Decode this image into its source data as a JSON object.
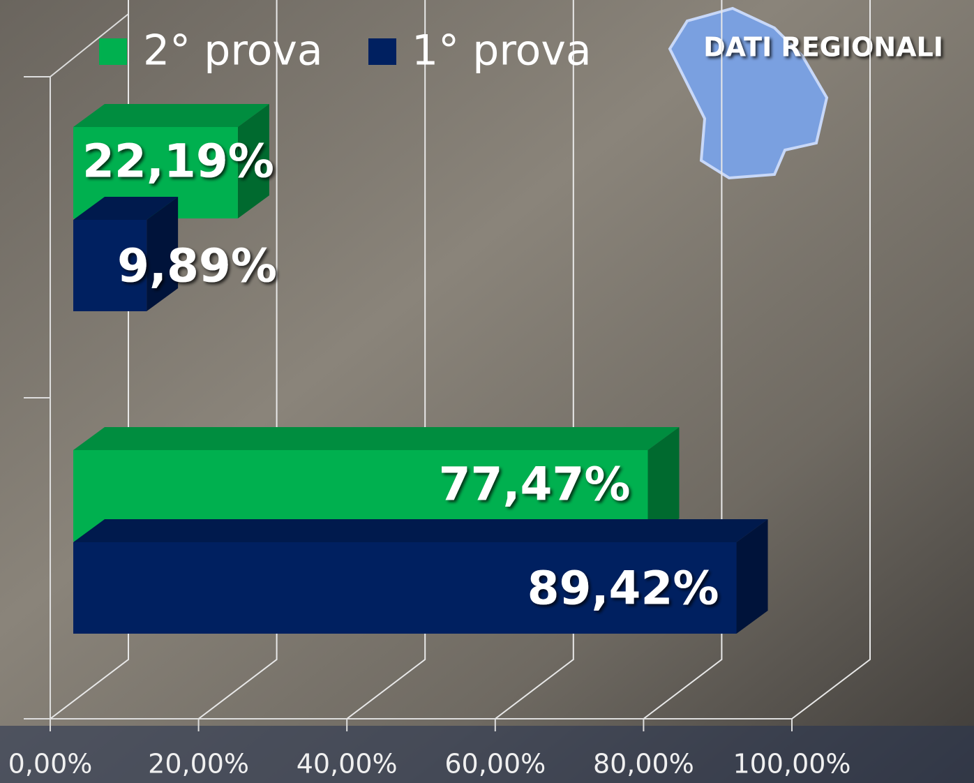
{
  "chart_data": {
    "type": "bar3d",
    "orientation": "horizontal",
    "title": "DATI REGIONALI",
    "categories": [
      null,
      null
    ],
    "series": [
      {
        "name": "2° prova",
        "color": "#00b04f",
        "values": [
          22.19,
          77.47
        ],
        "value_labels": [
          "22,19%",
          "77,47%"
        ]
      },
      {
        "name": "1° prova",
        "color": "#002060",
        "values": [
          9.89,
          89.42
        ],
        "value_labels": [
          "9,89%",
          "89,42%"
        ]
      }
    ],
    "xlim": [
      0,
      100
    ],
    "xticks": [
      {
        "value": 0,
        "label": "0,00%"
      },
      {
        "value": 20,
        "label": "20,00%"
      },
      {
        "value": 40,
        "label": "40,00%"
      },
      {
        "value": 60,
        "label": "60,00%"
      },
      {
        "value": 80,
        "label": "80,00%"
      },
      {
        "value": 100,
        "label": "100,00%"
      }
    ],
    "grid": true
  }
}
